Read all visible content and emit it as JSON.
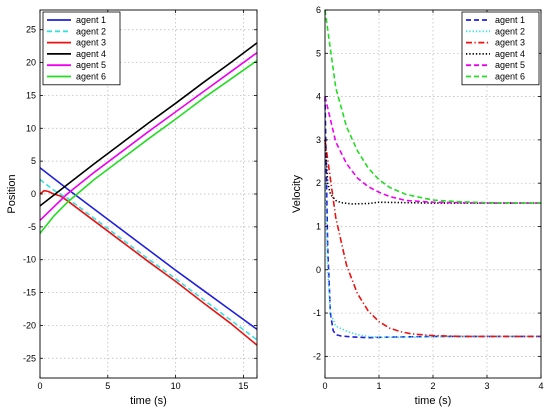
{
  "chart_data": [
    {
      "type": "line",
      "xlabel": "time (s)",
      "ylabel": "Position",
      "xlim": [
        0,
        16
      ],
      "ylim": [
        -28,
        28
      ],
      "xticks": [
        0,
        5,
        10,
        15
      ],
      "yticks": [
        -25,
        -20,
        -15,
        -10,
        -5,
        0,
        5,
        10,
        15,
        20,
        25
      ],
      "grid": true,
      "legend_position": "top-left",
      "series": [
        {
          "name": "agent 1",
          "color": "#1f1fe0",
          "style": "solid",
          "x": [
            0,
            2,
            4,
            6,
            8,
            10,
            12,
            14,
            16
          ],
          "y": [
            4.0,
            0.8,
            -2.3,
            -5.4,
            -8.5,
            -11.6,
            -14.6,
            -17.6,
            -20.6
          ]
        },
        {
          "name": "agent 2",
          "color": "#39e0e0",
          "style": "dashed",
          "x": [
            0,
            1,
            2,
            4,
            6,
            8,
            10,
            12,
            14,
            16
          ],
          "y": [
            2.2,
            0.6,
            -0.6,
            -3.7,
            -6.8,
            -9.9,
            -12.9,
            -16.0,
            -19.1,
            -22.2
          ]
        },
        {
          "name": "agent 3",
          "color": "#ee1111",
          "style": "solid",
          "x": [
            0,
            0.3,
            0.6,
            1.0,
            1.5,
            2,
            4,
            6,
            8,
            10,
            12,
            14,
            16
          ],
          "y": [
            0.0,
            0.5,
            0.4,
            0.0,
            -0.3,
            -1.0,
            -4.1,
            -7.2,
            -10.3,
            -13.3,
            -16.5,
            -19.6,
            -23.0
          ]
        },
        {
          "name": "agent 4",
          "color": "#000000",
          "style": "solid",
          "x": [
            0,
            2,
            4,
            6,
            8,
            10,
            12,
            14,
            16
          ],
          "y": [
            -1.8,
            1.4,
            4.6,
            7.7,
            10.8,
            13.8,
            16.9,
            19.9,
            23.0
          ]
        },
        {
          "name": "agent 5",
          "color": "#ee00ee",
          "style": "solid",
          "x": [
            0,
            2,
            4,
            6,
            8,
            10,
            12,
            14,
            16
          ],
          "y": [
            -4.0,
            0.0,
            3.3,
            6.4,
            9.5,
            12.5,
            15.5,
            18.5,
            21.5
          ]
        },
        {
          "name": "agent 6",
          "color": "#22dd22",
          "style": "solid",
          "x": [
            0,
            1,
            2,
            4,
            6,
            8,
            10,
            12,
            14,
            16
          ],
          "y": [
            -6.0,
            -3.4,
            -1.3,
            2.2,
            5.3,
            8.4,
            11.4,
            14.5,
            17.4,
            20.3
          ]
        }
      ]
    },
    {
      "type": "line",
      "xlabel": "time (s)",
      "ylabel": "Velocity",
      "xlim": [
        0,
        4
      ],
      "ylim": [
        -2.5,
        6
      ],
      "xticks": [
        0,
        1,
        2,
        3,
        4
      ],
      "yticks": [
        -2,
        -1,
        0,
        1,
        2,
        3,
        4,
        5,
        6
      ],
      "grid": true,
      "legend_position": "top-right",
      "series": [
        {
          "name": "agent 1",
          "color": "#1f1fe0",
          "style": "dashed",
          "x": [
            0,
            0.05,
            0.1,
            0.15,
            0.2,
            0.3,
            0.5,
            0.8,
            1.0,
            1.5,
            2,
            3,
            4
          ],
          "y": [
            4.0,
            0.5,
            -1.0,
            -1.4,
            -1.5,
            -1.53,
            -1.55,
            -1.57,
            -1.56,
            -1.55,
            -1.54,
            -1.54,
            -1.54
          ]
        },
        {
          "name": "agent 2",
          "color": "#39e0e0",
          "style": "dotted",
          "x": [
            0,
            0.05,
            0.1,
            0.2,
            0.4,
            0.6,
            0.8,
            1.0,
            1.5,
            2,
            3,
            4
          ],
          "y": [
            2.0,
            0.0,
            -1.0,
            -1.3,
            -1.42,
            -1.5,
            -1.54,
            -1.56,
            -1.56,
            -1.55,
            -1.54,
            -1.54
          ]
        },
        {
          "name": "agent 3",
          "color": "#ee1111",
          "style": "dashdot",
          "x": [
            0,
            0.2,
            0.4,
            0.6,
            0.8,
            1.0,
            1.2,
            1.4,
            1.6,
            2,
            2.5,
            3,
            4
          ],
          "y": [
            3.0,
            1.2,
            0.1,
            -0.55,
            -0.95,
            -1.2,
            -1.35,
            -1.43,
            -1.48,
            -1.52,
            -1.54,
            -1.54,
            -1.54
          ]
        },
        {
          "name": "agent 4",
          "color": "#000000",
          "style": "dotted",
          "x": [
            0,
            0.05,
            0.1,
            0.2,
            0.3,
            0.5,
            0.8,
            1.0,
            1.5,
            2,
            3,
            4
          ],
          "y": [
            3.0,
            2.0,
            1.75,
            1.6,
            1.55,
            1.52,
            1.53,
            1.56,
            1.55,
            1.54,
            1.54,
            1.54
          ]
        },
        {
          "name": "agent 5",
          "color": "#ee00ee",
          "style": "dashed",
          "x": [
            0,
            0.2,
            0.4,
            0.6,
            0.8,
            1.0,
            1.2,
            1.5,
            2,
            2.5,
            3,
            4
          ],
          "y": [
            4.0,
            2.95,
            2.45,
            2.12,
            1.92,
            1.79,
            1.69,
            1.6,
            1.56,
            1.55,
            1.54,
            1.54
          ]
        },
        {
          "name": "agent 6",
          "color": "#22dd22",
          "style": "dashed",
          "x": [
            0,
            0.2,
            0.4,
            0.6,
            0.8,
            1.0,
            1.2,
            1.5,
            2,
            2.5,
            3,
            4
          ],
          "y": [
            6.0,
            4.2,
            3.3,
            2.75,
            2.35,
            2.08,
            1.9,
            1.74,
            1.61,
            1.57,
            1.55,
            1.54
          ]
        }
      ]
    }
  ]
}
